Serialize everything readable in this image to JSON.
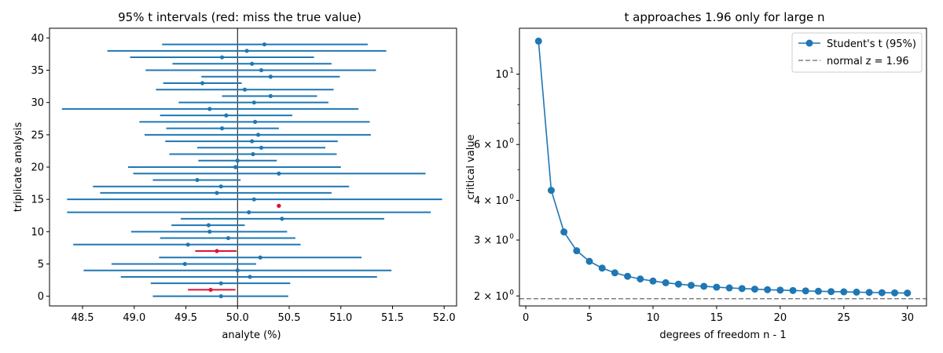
{
  "chart_data": [
    {
      "type": "errorbar",
      "title": "95% t intervals (red: miss the true value)",
      "xlabel": "analyte (%)",
      "ylabel": "triplicate analysis",
      "xlim": [
        48.18,
        52.12
      ],
      "ylim": [
        -1.5,
        41.5
      ],
      "xticks": [
        48.5,
        49.0,
        49.5,
        50.0,
        50.5,
        51.0,
        51.5,
        52.0
      ],
      "xtick_labels": [
        "48.5",
        "49.0",
        "49.5",
        "50.0",
        "50.5",
        "51.0",
        "51.5",
        "52.0"
      ],
      "yticks": [
        0,
        5,
        10,
        15,
        20,
        25,
        30,
        35,
        40
      ],
      "ytick_labels": [
        "0",
        "5",
        "10",
        "15",
        "20",
        "25",
        "30",
        "35",
        "40"
      ],
      "true_value": 50.0,
      "colors": {
        "covered": "#1f77b4",
        "missed": "#dc143c",
        "reference": "#000000"
      },
      "intervals": [
        {
          "y": 0,
          "mean": 49.84,
          "low": 49.18,
          "high": 50.49,
          "miss": false
        },
        {
          "y": 1,
          "mean": 49.74,
          "low": 49.52,
          "high": 49.98,
          "miss": true
        },
        {
          "y": 2,
          "mean": 49.84,
          "low": 49.16,
          "high": 50.51,
          "miss": false
        },
        {
          "y": 3,
          "mean": 50.12,
          "low": 48.87,
          "high": 51.35,
          "miss": false
        },
        {
          "y": 4,
          "mean": 50.0,
          "low": 48.51,
          "high": 51.49,
          "miss": false
        },
        {
          "y": 5,
          "mean": 49.49,
          "low": 48.78,
          "high": 50.18,
          "miss": false
        },
        {
          "y": 6,
          "mean": 50.22,
          "low": 49.24,
          "high": 51.2,
          "miss": false
        },
        {
          "y": 7,
          "mean": 49.8,
          "low": 49.59,
          "high": 49.99,
          "miss": true
        },
        {
          "y": 8,
          "mean": 49.52,
          "low": 48.41,
          "high": 50.61,
          "miss": false
        },
        {
          "y": 9,
          "mean": 49.91,
          "low": 49.25,
          "high": 50.56,
          "miss": false
        },
        {
          "y": 10,
          "mean": 49.73,
          "low": 48.97,
          "high": 50.48,
          "miss": false
        },
        {
          "y": 11,
          "mean": 49.72,
          "low": 49.36,
          "high": 50.07,
          "miss": false
        },
        {
          "y": 12,
          "mean": 50.43,
          "low": 49.45,
          "high": 51.42,
          "miss": false
        },
        {
          "y": 13,
          "mean": 50.11,
          "low": 48.35,
          "high": 51.87,
          "miss": false
        },
        {
          "y": 14,
          "mean": 50.4,
          "low": 50.38,
          "high": 50.42,
          "miss": true
        },
        {
          "y": 15,
          "mean": 50.16,
          "low": 48.35,
          "high": 51.98,
          "miss": false
        },
        {
          "y": 16,
          "mean": 49.8,
          "low": 48.67,
          "high": 50.91,
          "miss": false
        },
        {
          "y": 17,
          "mean": 49.84,
          "low": 48.6,
          "high": 51.08,
          "miss": false
        },
        {
          "y": 18,
          "mean": 49.61,
          "low": 49.18,
          "high": 50.03,
          "miss": false
        },
        {
          "y": 19,
          "mean": 50.4,
          "low": 48.99,
          "high": 51.82,
          "miss": false
        },
        {
          "y": 20,
          "mean": 49.98,
          "low": 48.94,
          "high": 51.0,
          "miss": false
        },
        {
          "y": 21,
          "mean": 50.0,
          "low": 49.62,
          "high": 50.38,
          "miss": false
        },
        {
          "y": 22,
          "mean": 50.15,
          "low": 49.34,
          "high": 50.96,
          "miss": false
        },
        {
          "y": 23,
          "mean": 50.23,
          "low": 49.61,
          "high": 50.85,
          "miss": false
        },
        {
          "y": 24,
          "mean": 50.14,
          "low": 49.3,
          "high": 50.97,
          "miss": false
        },
        {
          "y": 25,
          "mean": 50.2,
          "low": 49.1,
          "high": 51.29,
          "miss": false
        },
        {
          "y": 26,
          "mean": 49.85,
          "low": 49.31,
          "high": 50.4,
          "miss": false
        },
        {
          "y": 27,
          "mean": 50.17,
          "low": 49.05,
          "high": 51.28,
          "miss": false
        },
        {
          "y": 28,
          "mean": 49.89,
          "low": 49.25,
          "high": 50.53,
          "miss": false
        },
        {
          "y": 29,
          "mean": 49.73,
          "low": 48.3,
          "high": 51.17,
          "miss": false
        },
        {
          "y": 30,
          "mean": 50.16,
          "low": 49.43,
          "high": 50.88,
          "miss": false
        },
        {
          "y": 31,
          "mean": 50.32,
          "low": 49.85,
          "high": 50.77,
          "miss": false
        },
        {
          "y": 32,
          "mean": 50.07,
          "low": 49.21,
          "high": 50.93,
          "miss": false
        },
        {
          "y": 33,
          "mean": 49.66,
          "low": 49.28,
          "high": 50.04,
          "miss": false
        },
        {
          "y": 34,
          "mean": 50.32,
          "low": 49.65,
          "high": 50.99,
          "miss": false
        },
        {
          "y": 35,
          "mean": 50.23,
          "low": 49.11,
          "high": 51.34,
          "miss": false
        },
        {
          "y": 36,
          "mean": 50.14,
          "low": 49.37,
          "high": 50.91,
          "miss": false
        },
        {
          "y": 37,
          "mean": 49.85,
          "low": 48.96,
          "high": 50.74,
          "miss": false
        },
        {
          "y": 38,
          "mean": 50.09,
          "low": 48.74,
          "high": 51.44,
          "miss": false
        },
        {
          "y": 39,
          "mean": 50.26,
          "low": 49.27,
          "high": 51.26,
          "miss": false
        }
      ]
    },
    {
      "type": "line",
      "title": "t approaches 1.96 only for large n",
      "xlabel": "degrees of freedom n - 1",
      "ylabel": "critical value",
      "yscale": "log",
      "xlim": [
        -0.5,
        31.5
      ],
      "ylim": [
        1.86,
        13.95
      ],
      "xticks": [
        0,
        5,
        10,
        15,
        20,
        25,
        30
      ],
      "xtick_labels": [
        "0",
        "5",
        "10",
        "15",
        "20",
        "25",
        "30"
      ],
      "yticks": [
        {
          "value": 2,
          "base": "2 × 10",
          "exp": "0"
        },
        {
          "value": 3,
          "base": "3 × 10",
          "exp": "0"
        },
        {
          "value": 4,
          "base": "4 × 10",
          "exp": "0"
        },
        {
          "value": 6,
          "base": "6 × 10",
          "exp": "0"
        },
        {
          "value": 10,
          "base": "10",
          "exp": "1"
        }
      ],
      "minor_yticks": [
        5,
        7,
        8,
        9
      ],
      "legend_position": "top-right",
      "series": [
        {
          "name": "Student's t (95%)",
          "color": "#1f77b4",
          "x": [
            1,
            2,
            3,
            4,
            5,
            6,
            7,
            8,
            9,
            10,
            11,
            12,
            13,
            14,
            15,
            16,
            17,
            18,
            19,
            20,
            21,
            22,
            23,
            24,
            25,
            26,
            27,
            28,
            29,
            30
          ],
          "y": [
            12.706,
            4.303,
            3.182,
            2.776,
            2.571,
            2.447,
            2.365,
            2.306,
            2.262,
            2.228,
            2.201,
            2.179,
            2.16,
            2.145,
            2.131,
            2.12,
            2.11,
            2.101,
            2.093,
            2.086,
            2.08,
            2.074,
            2.069,
            2.064,
            2.06,
            2.056,
            2.052,
            2.048,
            2.045,
            2.042
          ]
        }
      ],
      "reference_line": {
        "name": "normal z = 1.96",
        "value": 1.96,
        "color": "#808080"
      }
    }
  ]
}
